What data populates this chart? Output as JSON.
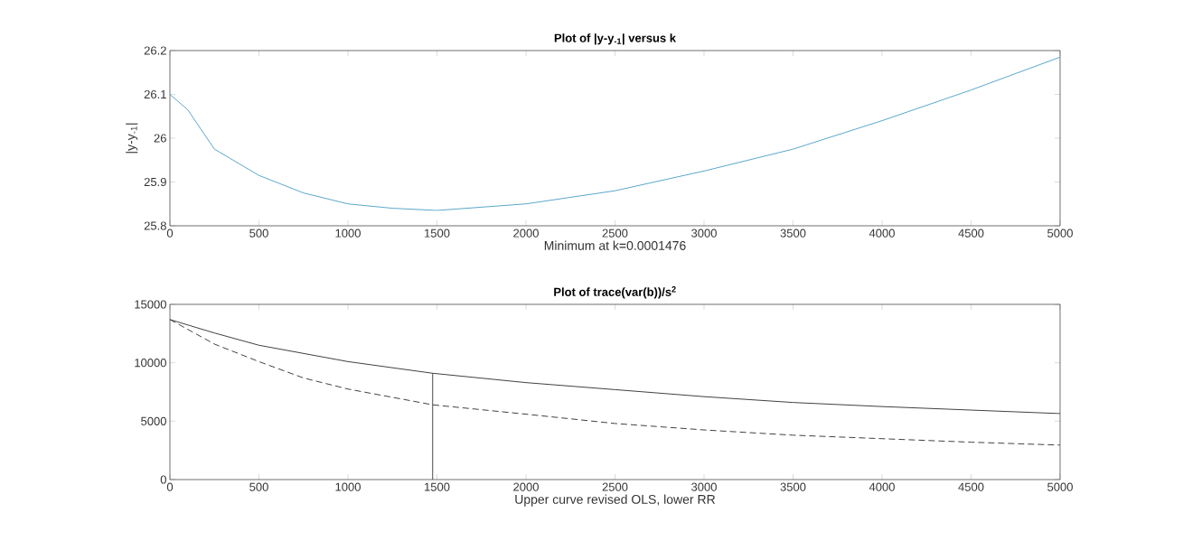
{
  "chart_data": [
    {
      "type": "line",
      "title": "Plot of |y-y$_{-1}$| versus k",
      "xlabel": "Minimum at k=0.0001476",
      "ylabel": "|y-y$_{-1}$|",
      "xlim": [
        0,
        5000
      ],
      "ylim": [
        25.8,
        26.2
      ],
      "xticks": [
        0,
        500,
        1000,
        1500,
        2000,
        2500,
        3000,
        3500,
        4000,
        4500,
        5000
      ],
      "yticks": [
        25.8,
        25.9,
        26,
        26.1,
        26.2
      ],
      "grid": false,
      "series": [
        {
          "color": "#5aa7c9",
          "line_style": "solid",
          "x": [
            0,
            100,
            250,
            500,
            750,
            1000,
            1250,
            1500,
            2000,
            2500,
            3000,
            3500,
            4000,
            4500,
            5000
          ],
          "values": [
            26.1,
            26.065,
            25.975,
            25.915,
            25.875,
            25.85,
            25.84,
            25.835,
            25.85,
            25.88,
            25.925,
            25.975,
            26.04,
            26.11,
            26.185
          ]
        }
      ]
    },
    {
      "type": "line",
      "title": "Plot of trace(var(b))/s$^{2}$",
      "xlabel": "Upper curve revised OLS, lower RR",
      "xlim": [
        0,
        5000
      ],
      "ylim": [
        0,
        15000
      ],
      "xticks": [
        0,
        500,
        1000,
        1500,
        2000,
        2500,
        3000,
        3500,
        4000,
        4500,
        5000
      ],
      "yticks": [
        0,
        5000,
        10000,
        15000
      ],
      "grid": false,
      "series": [
        {
          "color": "#404040",
          "line_style": "solid",
          "x": [
            0,
            250,
            500,
            1000,
            1476,
            2000,
            2500,
            3000,
            3500,
            4000,
            4500,
            5000
          ],
          "values": [
            13700,
            12550,
            11500,
            10100,
            9100,
            8300,
            7700,
            7100,
            6600,
            6250,
            5950,
            5650
          ]
        },
        {
          "color": "#404040",
          "line_style": "dashed",
          "x": [
            0,
            250,
            500,
            750,
            1000,
            1476,
            2000,
            2500,
            3000,
            3500,
            4000,
            4500,
            5000
          ],
          "values": [
            13700,
            11600,
            10100,
            8700,
            7750,
            6400,
            5600,
            4800,
            4250,
            3800,
            3500,
            3200,
            2950
          ]
        },
        {
          "color": "#404040",
          "line_style": "solid",
          "x": [
            1476,
            1476
          ],
          "values": [
            0,
            9100
          ]
        }
      ]
    }
  ]
}
